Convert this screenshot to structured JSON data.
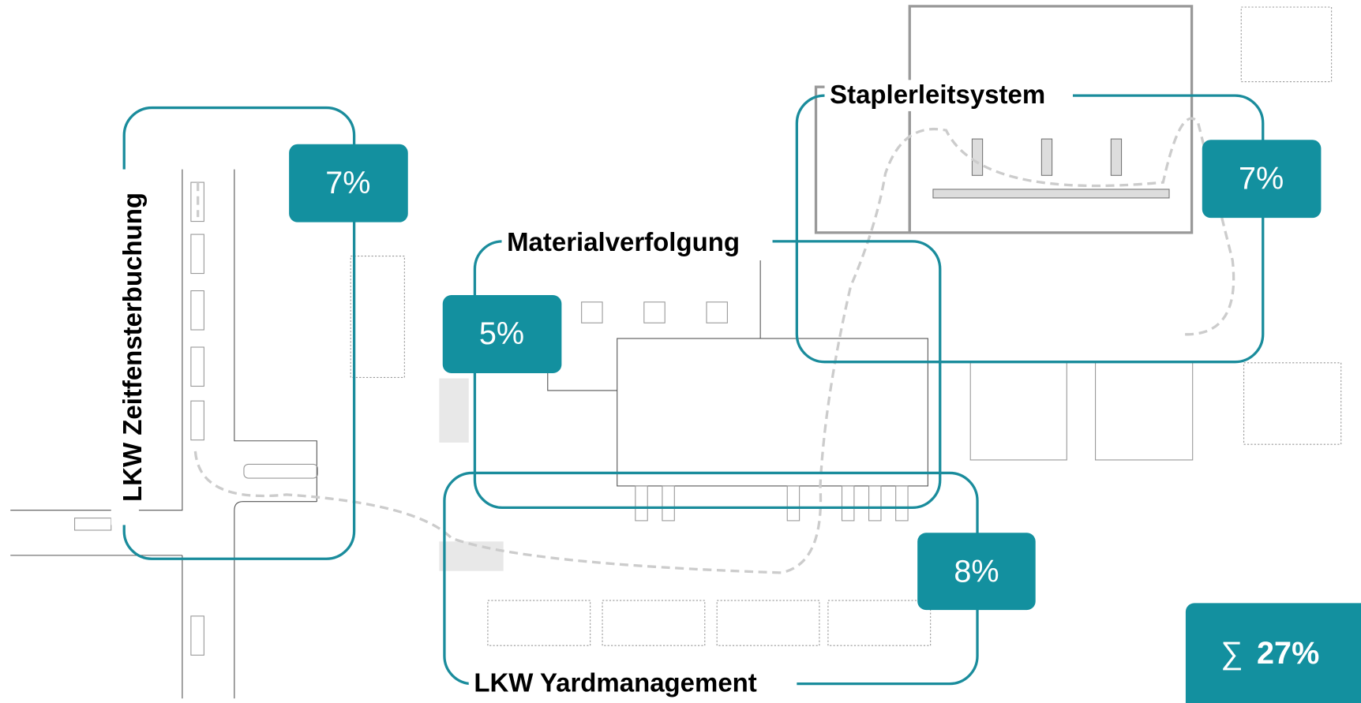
{
  "modules": [
    {
      "name": "LKW Zeitfensterbuchung",
      "share": "7%"
    },
    {
      "name": "Materialverfolgung",
      "share": "5%"
    },
    {
      "name": "Staplerleitsystem",
      "share": "7%"
    },
    {
      "name": "LKW Yardmanagement",
      "share": "8%"
    }
  ],
  "total": {
    "symbol": "∑",
    "value": "27%"
  }
}
